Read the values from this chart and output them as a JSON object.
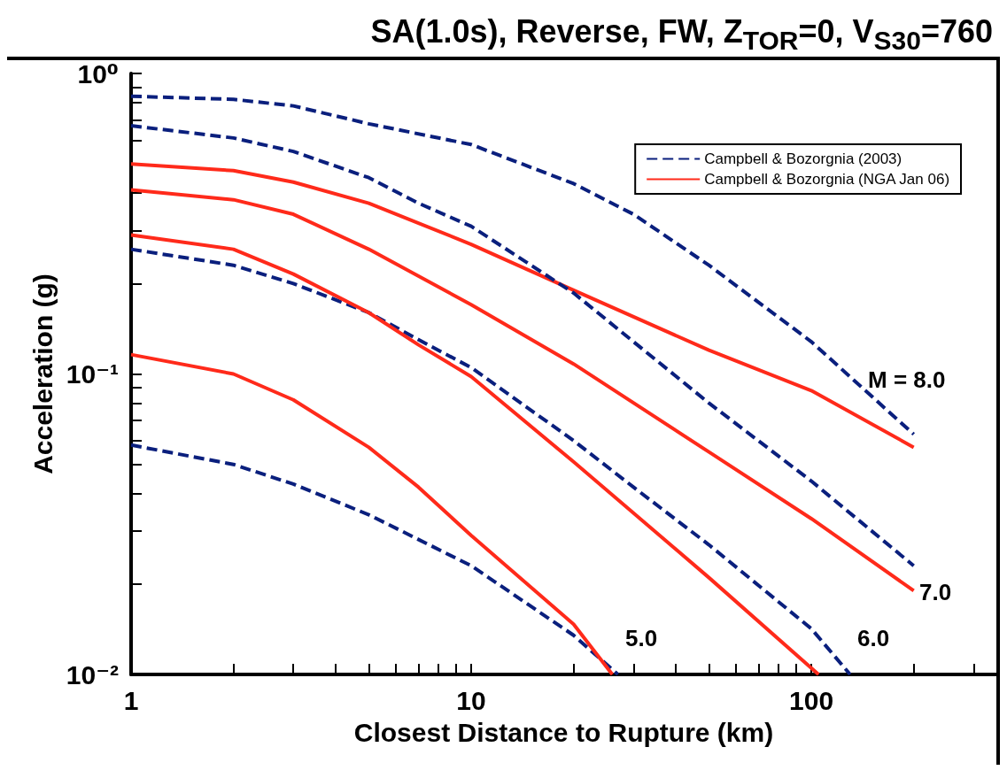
{
  "chart_data": {
    "type": "line",
    "title": "SA(1.0s), Reverse, FW, Z$_{TOR}$=0, V$_{S30}$=760",
    "xlabel": "Closest Distance to Rupture (km)",
    "ylabel": "Acceleration (g)",
    "log": "xy",
    "xlim": [
      1,
      350
    ],
    "ylim": [
      0.01,
      1
    ],
    "xticks": [
      1,
      {
        "value": 2,
        "label": null
      },
      {
        "value": 3,
        "label": null
      },
      {
        "value": 4,
        "label": null
      },
      {
        "value": 5,
        "label": null
      },
      {
        "value": 6,
        "label": null
      },
      {
        "value": 7,
        "label": null
      },
      {
        "value": 8,
        "label": null
      },
      {
        "value": 9,
        "label": null
      },
      10,
      {
        "value": 20,
        "label": null
      },
      {
        "value": 30,
        "label": null
      },
      {
        "value": 40,
        "label": null
      },
      {
        "value": 50,
        "label": null
      },
      {
        "value": 60,
        "label": null
      },
      {
        "value": 70,
        "label": null
      },
      {
        "value": 80,
        "label": null
      },
      {
        "value": 90,
        "label": null
      },
      100,
      {
        "value": 200,
        "label": null
      },
      {
        "value": 300,
        "label": null
      }
    ],
    "yticks": [
      {
        "value": 0.01,
        "label": "10⁻²"
      },
      {
        "value": 0.02,
        "label": null
      },
      {
        "value": 0.03,
        "label": null
      },
      {
        "value": 0.04,
        "label": null
      },
      {
        "value": 0.05,
        "label": null
      },
      {
        "value": 0.06,
        "label": null
      },
      {
        "value": 0.07,
        "label": null
      },
      {
        "value": 0.08,
        "label": null
      },
      {
        "value": 0.09,
        "label": null
      },
      {
        "value": 0.1,
        "label": "10⁻¹"
      },
      {
        "value": 0.2,
        "label": null
      },
      {
        "value": 0.3,
        "label": null
      },
      {
        "value": 0.4,
        "label": null
      },
      {
        "value": 0.5,
        "label": null
      },
      {
        "value": 0.6,
        "label": null
      },
      {
        "value": 0.7,
        "label": null
      },
      {
        "value": 0.8,
        "label": null
      },
      {
        "value": 0.9,
        "label": null
      },
      {
        "value": 1,
        "label": "10⁰"
      }
    ],
    "grid": false,
    "legend": "top right",
    "marker": "none",
    "series": [
      {
        "name": "Campbell & Bozorgnia (2003)",
        "color": "#0a1f7d",
        "line_style": "dashed",
        "x": [
          1,
          2,
          3,
          5,
          10,
          20,
          30,
          50,
          100,
          200
        ],
        "values": [
          0.84,
          0.82,
          0.78,
          0.68,
          0.58,
          0.43,
          0.34,
          0.23,
          0.128,
          0.063
        ]
      },
      {
        "name": "Campbell & Bozorgnia (NGA Jan 06)",
        "color": "#ff2a1a",
        "line_style": "solid",
        "x": [
          1,
          2,
          3,
          5,
          10,
          20,
          50,
          100,
          200
        ],
        "values": [
          0.5,
          0.475,
          0.435,
          0.37,
          0.27,
          0.19,
          0.12,
          0.088,
          0.057
        ]
      },
      {
        "color": "#0a1f7d",
        "line_style": "dashed",
        "x": [
          1,
          2,
          3,
          5,
          7,
          10,
          20,
          30,
          50,
          100,
          200
        ],
        "values": [
          0.67,
          0.61,
          0.55,
          0.45,
          0.37,
          0.31,
          0.186,
          0.128,
          0.08,
          0.044,
          0.023
        ]
      },
      {
        "color": "#ff2a1a",
        "line_style": "solid",
        "x": [
          1,
          2,
          3,
          5,
          10,
          20,
          50,
          100,
          200
        ],
        "values": [
          0.41,
          0.38,
          0.34,
          0.26,
          0.17,
          0.108,
          0.055,
          0.033,
          0.019
        ]
      },
      {
        "color": "#0a1f7d",
        "line_style": "dashed",
        "x": [
          1,
          2,
          3,
          5,
          7,
          10,
          20,
          30,
          50,
          100,
          130
        ],
        "values": [
          0.26,
          0.23,
          0.2,
          0.16,
          0.13,
          0.105,
          0.06,
          0.042,
          0.027,
          0.0142,
          0.01
        ]
      },
      {
        "color": "#ff2a1a",
        "line_style": "solid",
        "x": [
          1,
          2,
          3,
          5,
          7,
          10,
          20,
          50,
          105
        ],
        "values": [
          0.29,
          0.26,
          0.215,
          0.16,
          0.125,
          0.098,
          0.051,
          0.021,
          0.01
        ]
      },
      {
        "color": "#0a1f7d",
        "line_style": "dashed",
        "x": [
          1,
          2,
          3,
          5,
          10,
          20,
          27
        ],
        "values": [
          0.058,
          0.05,
          0.043,
          0.034,
          0.023,
          0.0135,
          0.01
        ]
      },
      {
        "color": "#ff2a1a",
        "line_style": "solid",
        "x": [
          1,
          2,
          3,
          5,
          7,
          10,
          20,
          26
        ],
        "values": [
          0.116,
          0.1,
          0.082,
          0.057,
          0.042,
          0.029,
          0.0147,
          0.01
        ]
      }
    ],
    "annotations": [
      "M = 8.0",
      "7.0",
      "6.0",
      "5.0"
    ]
  }
}
